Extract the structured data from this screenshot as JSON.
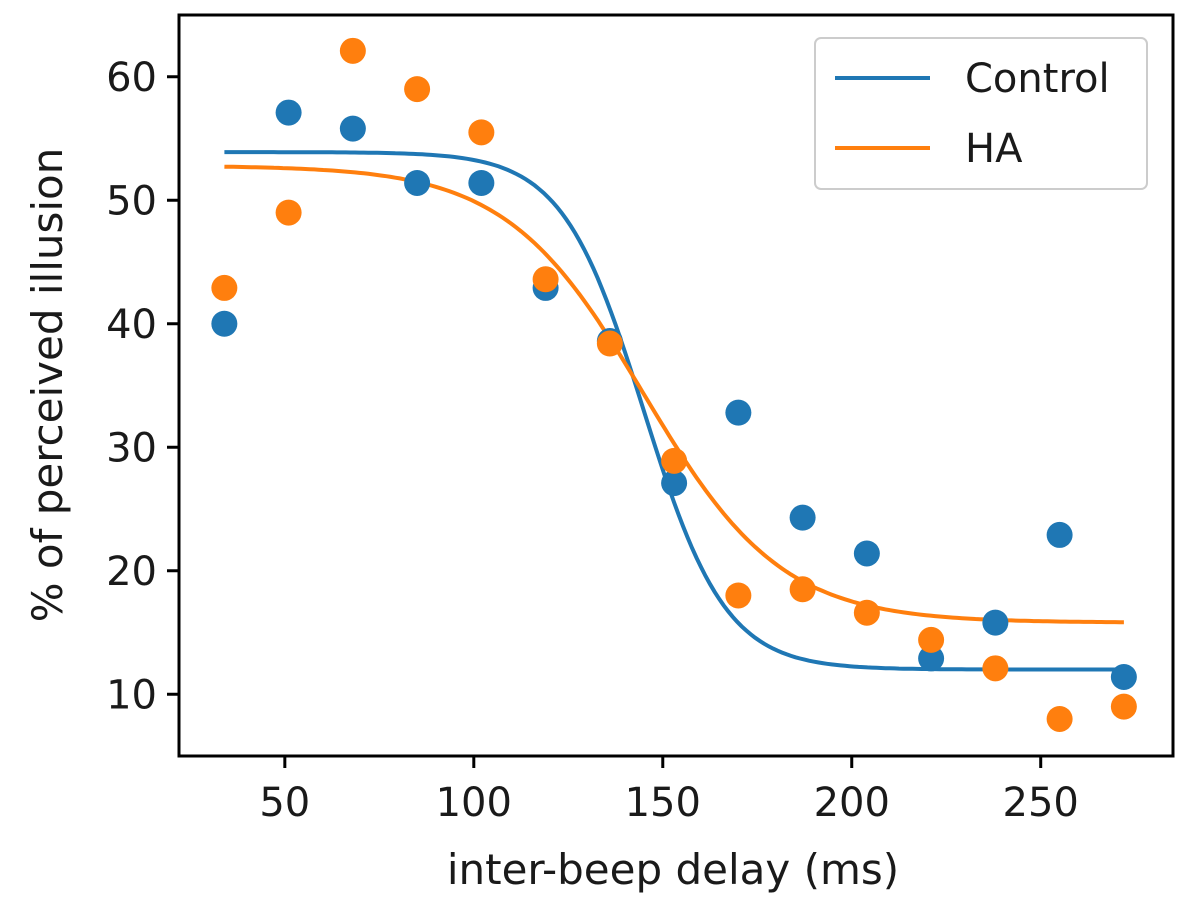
{
  "chart_data": {
    "type": "scatter",
    "title": "",
    "xlabel": "inter-beep delay (ms)",
    "ylabel": "% of perceived illusion",
    "xlim": [
      22,
      285
    ],
    "ylim": [
      5,
      65
    ],
    "xticks": [
      50,
      100,
      150,
      200,
      250
    ],
    "yticks": [
      10,
      20,
      30,
      40,
      50,
      60
    ],
    "grid": false,
    "legend": {
      "position": "top-right",
      "style": "line"
    },
    "series": [
      {
        "name": "Control",
        "color": "#1f77b4",
        "points": {
          "x": [
            34,
            51,
            68,
            85,
            102,
            119,
            136,
            153,
            170,
            187,
            204,
            221,
            238,
            255,
            272
          ],
          "y": [
            40.0,
            57.1,
            55.8,
            51.4,
            51.4,
            42.9,
            38.6,
            27.1,
            32.8,
            24.3,
            21.4,
            12.9,
            15.8,
            22.9,
            11.4
          ]
        },
        "fit": {
          "model": "logistic",
          "top": 53.9,
          "bottom": 12.0,
          "midpoint": 145,
          "scale": 10.8,
          "x_range": [
            34,
            272
          ]
        }
      },
      {
        "name": "HA",
        "color": "#ff7f0e",
        "points": {
          "x": [
            34,
            51,
            68,
            85,
            102,
            119,
            136,
            153,
            170,
            187,
            204,
            221,
            238,
            255,
            272
          ],
          "y": [
            42.9,
            49.0,
            62.1,
            59.0,
            55.5,
            43.6,
            38.4,
            28.9,
            18.0,
            18.5,
            16.6,
            14.4,
            12.1,
            8.0,
            9.0
          ]
        },
        "fit": {
          "model": "logistic",
          "top": 52.8,
          "bottom": 15.8,
          "midpoint": 145,
          "scale": 18.2,
          "x_range": [
            34,
            272
          ]
        }
      }
    ]
  }
}
